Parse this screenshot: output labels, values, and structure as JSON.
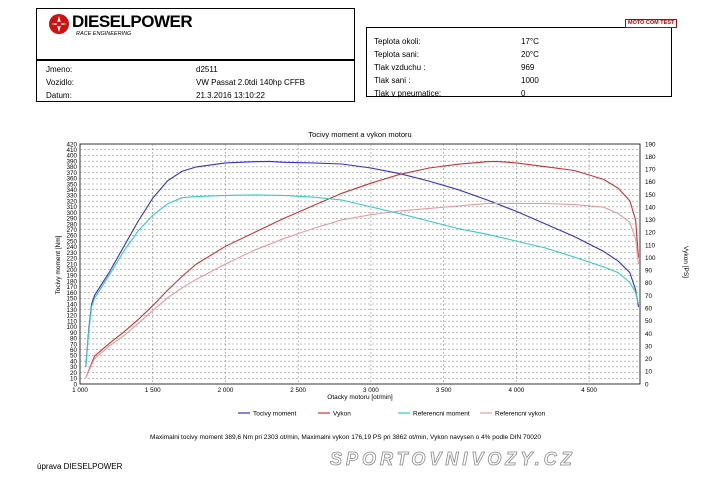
{
  "header": {
    "brand": "DIESELPOWER",
    "brand_sub": "RACE ENGINEERING",
    "dyno_badge": "MOTO COM TEST"
  },
  "vehicle": {
    "rows": [
      {
        "label": "Jmeno:",
        "value": "d2511"
      },
      {
        "label": "Vozidlo:",
        "value": "VW Passat 2.0tdi 140hp CFFB"
      },
      {
        "label": "Datum:",
        "value": "21.3.2016 13:10:22"
      }
    ]
  },
  "conditions": {
    "rows": [
      {
        "label": "Teplota okoli:",
        "value": "17°C"
      },
      {
        "label": "Teplota sani:",
        "value": "20°C"
      },
      {
        "label": "Tlak vzduchu :",
        "value": "969"
      },
      {
        "label": "Tlak sani :",
        "value": "1000"
      },
      {
        "label": "Tlak v pneumatice:",
        "value": "0"
      }
    ]
  },
  "footer": {
    "summary": "Maximalni tocivy moment 389,6 Nm pri 2303 ot/min,  Maximalni vykon 176,19 PS pri 3862 ot/min,  Vykon navysen o 4% podle DIN 70020",
    "author": "úprava DIESELPOWER",
    "watermark": "SPORTOVNIVOZY.CZ"
  },
  "chart_data": {
    "type": "line",
    "title": "Tocivy moment a vykon motoru",
    "xlabel": "Otacky motoru [ot/min]",
    "ylabel": "Tocivy moment [Nm]",
    "y2label": "Vykon [PS]",
    "xlim": [
      1000,
      4850
    ],
    "ylim": [
      0,
      420
    ],
    "y2lim": [
      0,
      190
    ],
    "xticks": [
      "1 000",
      "1 500",
      "2 000",
      "2 500",
      "3 000",
      "3 500",
      "4 000",
      "4 500"
    ],
    "xtick_values": [
      1000,
      1500,
      2000,
      2500,
      3000,
      3500,
      4000,
      4500
    ],
    "yticks": [
      0,
      10,
      20,
      30,
      40,
      50,
      60,
      70,
      80,
      90,
      100,
      110,
      120,
      130,
      140,
      150,
      160,
      170,
      180,
      190,
      200,
      210,
      220,
      230,
      240,
      250,
      260,
      270,
      280,
      290,
      300,
      310,
      320,
      330,
      340,
      350,
      360,
      370,
      380,
      390,
      400,
      410,
      420
    ],
    "y2ticks": [
      0,
      10,
      20,
      30,
      40,
      50,
      60,
      70,
      80,
      90,
      100,
      110,
      120,
      130,
      140,
      150,
      160,
      170,
      180,
      190
    ],
    "grid": true,
    "legend_position": "bottom",
    "series": [
      {
        "name": "Tocivy moment",
        "axis": "left",
        "color": "#3333cc",
        "x": [
          1040,
          1060,
          1080,
          1100,
          1200,
          1300,
          1400,
          1500,
          1600,
          1700,
          1800,
          2000,
          2200,
          2303,
          2400,
          2600,
          2800,
          3000,
          3200,
          3400,
          3600,
          3800,
          4000,
          4200,
          4400,
          4600,
          4700,
          4780,
          4820,
          4840
        ],
        "y": [
          30,
          95,
          140,
          155,
          195,
          240,
          285,
          325,
          355,
          372,
          380,
          387,
          389,
          389.6,
          388,
          387,
          385,
          378,
          368,
          355,
          340,
          322,
          302,
          280,
          258,
          232,
          215,
          195,
          165,
          135
        ]
      },
      {
        "name": "Vykon",
        "axis": "right",
        "color": "#cc3333",
        "x": [
          1040,
          1100,
          1200,
          1300,
          1400,
          1500,
          1600,
          1700,
          1800,
          2000,
          2200,
          2400,
          2600,
          2800,
          3000,
          3200,
          3400,
          3600,
          3800,
          3862,
          4000,
          4200,
          4400,
          4600,
          4700,
          4780,
          4820,
          4840
        ],
        "y": [
          5,
          22,
          32,
          41,
          51,
          62,
          74,
          85,
          95,
          109,
          120,
          131,
          141,
          151,
          159,
          166,
          171,
          174,
          176,
          176.19,
          175,
          172,
          169,
          162,
          155,
          145,
          130,
          100
        ]
      },
      {
        "name": "Referencni moment",
        "axis": "left",
        "color": "#33cccc",
        "x": [
          1040,
          1060,
          1080,
          1100,
          1200,
          1300,
          1400,
          1500,
          1600,
          1700,
          1800,
          2000,
          2200,
          2400,
          2600,
          2800,
          3000,
          3200,
          3400,
          3600,
          3800,
          4000,
          4200,
          4400,
          4600,
          4700,
          4780,
          4820,
          4840
        ],
        "y": [
          30,
          90,
          135,
          150,
          190,
          232,
          268,
          295,
          315,
          326,
          328,
          330,
          331,
          330,
          327,
          322,
          310,
          298,
          285,
          272,
          262,
          250,
          238,
          222,
          205,
          195,
          178,
          160,
          140
        ]
      },
      {
        "name": "Referencni vykon",
        "axis": "right",
        "color": "#ee9999",
        "x": [
          1040,
          1100,
          1200,
          1300,
          1400,
          1500,
          1600,
          1700,
          1800,
          2000,
          2200,
          2400,
          2600,
          2800,
          3000,
          3200,
          3400,
          3600,
          3800,
          4000,
          4200,
          4400,
          4600,
          4700,
          4780,
          4820,
          4840
        ],
        "y": [
          5,
          20,
          30,
          38,
          48,
          58,
          68,
          76,
          83,
          95,
          106,
          115,
          123,
          130,
          134,
          137,
          139,
          141,
          143,
          143,
          143,
          142,
          140,
          135,
          128,
          115,
          95
        ]
      }
    ]
  }
}
